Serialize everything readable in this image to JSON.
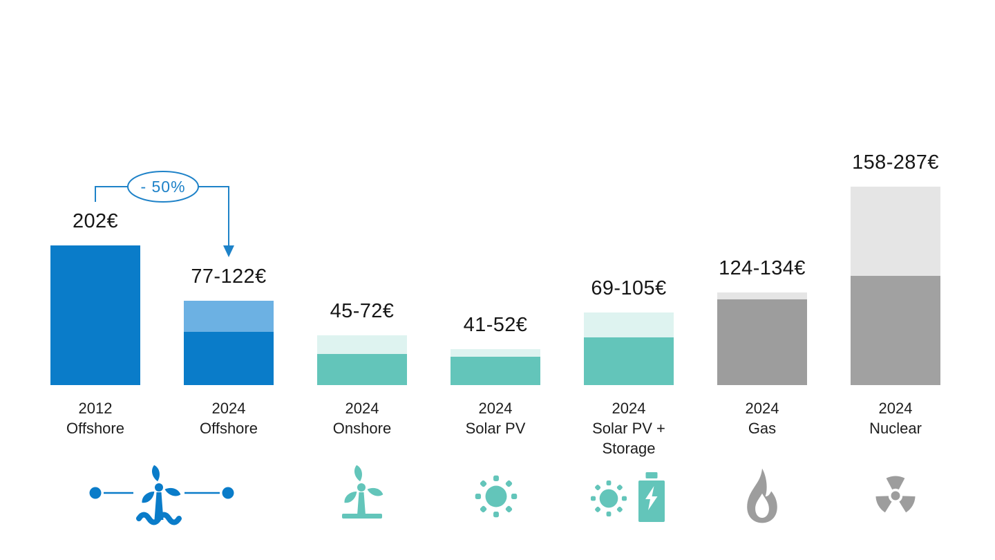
{
  "chart_data": {
    "type": "bar",
    "title": "",
    "xlabel": "",
    "ylabel": "",
    "unit": "€",
    "ylim": [
      0,
      300
    ],
    "grid": false,
    "legend": "none",
    "bars": [
      {
        "category_lines": [
          "2012",
          "Offshore"
        ],
        "value_label": "202€",
        "low": 202,
        "high": 202,
        "color_main": "#0a7cc9",
        "color_range": null,
        "icon": "offshore-wind-icon"
      },
      {
        "category_lines": [
          "2024",
          "Offshore"
        ],
        "value_label": "77-122€",
        "low": 77,
        "high": 122,
        "color_main": "#0a7cc9",
        "color_range": "#6cb1e3",
        "icon": "offshore-wind-icon"
      },
      {
        "category_lines": [
          "2024",
          "Onshore"
        ],
        "value_label": "45-72€",
        "low": 45,
        "high": 72,
        "color_main": "#63c5ba",
        "color_range": "#def3f0",
        "icon": "onshore-wind-icon"
      },
      {
        "category_lines": [
          "2024",
          "Solar PV"
        ],
        "value_label": "41-52€",
        "low": 41,
        "high": 52,
        "color_main": "#63c5ba",
        "color_range": "#def3f0",
        "icon": "solar-pv-icon"
      },
      {
        "category_lines": [
          "2024",
          "Solar PV +",
          "Storage"
        ],
        "value_label": "69-105€",
        "low": 69,
        "high": 105,
        "color_main": "#63c5ba",
        "color_range": "#def3f0",
        "icon": "solar-pv-storage-icon"
      },
      {
        "category_lines": [
          "2024",
          "Gas"
        ],
        "value_label": "124-134€",
        "low": 124,
        "high": 134,
        "color_main": "#9d9d9d",
        "color_range": "#e5e5e5",
        "icon": "gas-flame-icon"
      },
      {
        "category_lines": [
          "2024",
          "Nuclear"
        ],
        "value_label": "158-287€",
        "low": 158,
        "high": 287,
        "color_main": "#a1a1a1",
        "color_range": "#e5e5e5",
        "icon": "nuclear-icon"
      }
    ],
    "annotation": {
      "label": "- 50%",
      "from_bar": 0,
      "to_bar": 1,
      "color": "#1e82c8"
    }
  },
  "annotation": {
    "label": "- 50%",
    "color": "#1e82c8"
  }
}
